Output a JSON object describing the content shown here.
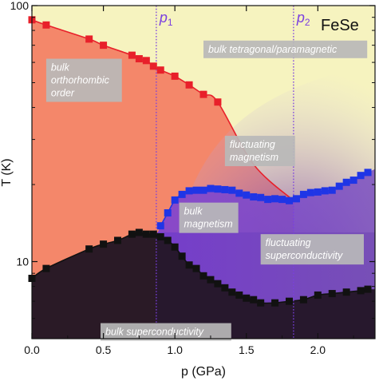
{
  "chart_data": {
    "type": "scatter",
    "title": "",
    "material": "FeSe",
    "xlabel": "p (GPa)",
    "ylabel": "T (K)",
    "xlim": [
      0,
      2.4
    ],
    "ylim": [
      5,
      100
    ],
    "y_scale": "log",
    "x_ticks": [
      "0.0",
      "0.5",
      "1.0",
      "1.5",
      "2.0"
    ],
    "y_ticks": [
      "10",
      "100"
    ],
    "critical_pressures": [
      {
        "symbol": "p",
        "sub": "1",
        "x": 0.87
      },
      {
        "symbol": "p",
        "sub": "2",
        "x": 1.83
      }
    ],
    "series": [
      {
        "name": "",
        "color": "#e8202a",
        "x": [
          0.0,
          0.1,
          0.4,
          0.5,
          0.7,
          0.75,
          0.8,
          0.85,
          0.9,
          1.0,
          1.1,
          1.2,
          1.3
        ],
        "y": [
          88,
          84,
          74,
          70,
          64,
          62,
          61,
          58,
          56,
          53,
          49,
          45,
          42
        ]
      },
      {
        "name": "",
        "color": "#1f35e6",
        "x": [
          0.9,
          0.95,
          1.0,
          1.05,
          1.1,
          1.15,
          1.2,
          1.25,
          1.3,
          1.35,
          1.4,
          1.45,
          1.5,
          1.55,
          1.6,
          1.65,
          1.7,
          1.75,
          1.8,
          1.85,
          1.9,
          1.95,
          2.0,
          2.05,
          2.1,
          2.15,
          2.2,
          2.25,
          2.3,
          2.35
        ],
        "y": [
          13.8,
          15.5,
          17.4,
          18.3,
          18.9,
          19.0,
          19.0,
          19.3,
          19.2,
          19.1,
          19.0,
          18.5,
          18.2,
          17.9,
          17.8,
          17.5,
          17.6,
          17.5,
          17.3,
          17.6,
          18.3,
          18.6,
          18.7,
          18.9,
          19.0,
          19.7,
          20.4,
          20.8,
          21.7,
          22.3
        ]
      },
      {
        "name": "",
        "color": "#111111",
        "x": [
          0.0,
          0.1,
          0.4,
          0.5,
          0.6,
          0.7,
          0.75,
          0.8,
          0.85,
          0.9,
          0.95,
          1.0,
          1.05,
          1.1,
          1.15,
          1.2,
          1.25,
          1.3,
          1.35,
          1.4,
          1.45,
          1.5,
          1.55,
          1.6,
          1.7,
          1.8,
          1.9,
          2.0,
          2.1,
          2.2,
          2.3,
          2.35
        ],
        "y": [
          8.6,
          9.4,
          11.2,
          11.7,
          12.1,
          12.8,
          13.0,
          12.8,
          12.8,
          12.5,
          12.1,
          11.4,
          10.5,
          9.7,
          9.4,
          8.8,
          8.5,
          8.2,
          7.9,
          7.6,
          7.4,
          7.2,
          7.1,
          6.9,
          6.9,
          7.0,
          7.1,
          7.4,
          7.5,
          7.6,
          7.7,
          7.8
        ]
      }
    ],
    "region_labels": [
      {
        "lines": [
          "bulk",
          "orthorhombic",
          "order"
        ],
        "x": 0.1,
        "y": 62
      },
      {
        "lines": [
          "bulk tetragonal/paramagnetic"
        ],
        "x": 1.2,
        "y": 73
      },
      {
        "lines": [
          "fluctuating",
          "magnetism"
        ],
        "x": 1.35,
        "y": 31
      },
      {
        "lines": [
          "bulk",
          "magnetism"
        ],
        "x": 1.03,
        "y": 17.0
      },
      {
        "lines": [
          "fluctuating",
          "superconductivity"
        ],
        "x": 1.6,
        "y": 12.8
      },
      {
        "lines": [
          "bulk superconductivity"
        ],
        "x": 0.48,
        "y": 5.75
      }
    ]
  }
}
